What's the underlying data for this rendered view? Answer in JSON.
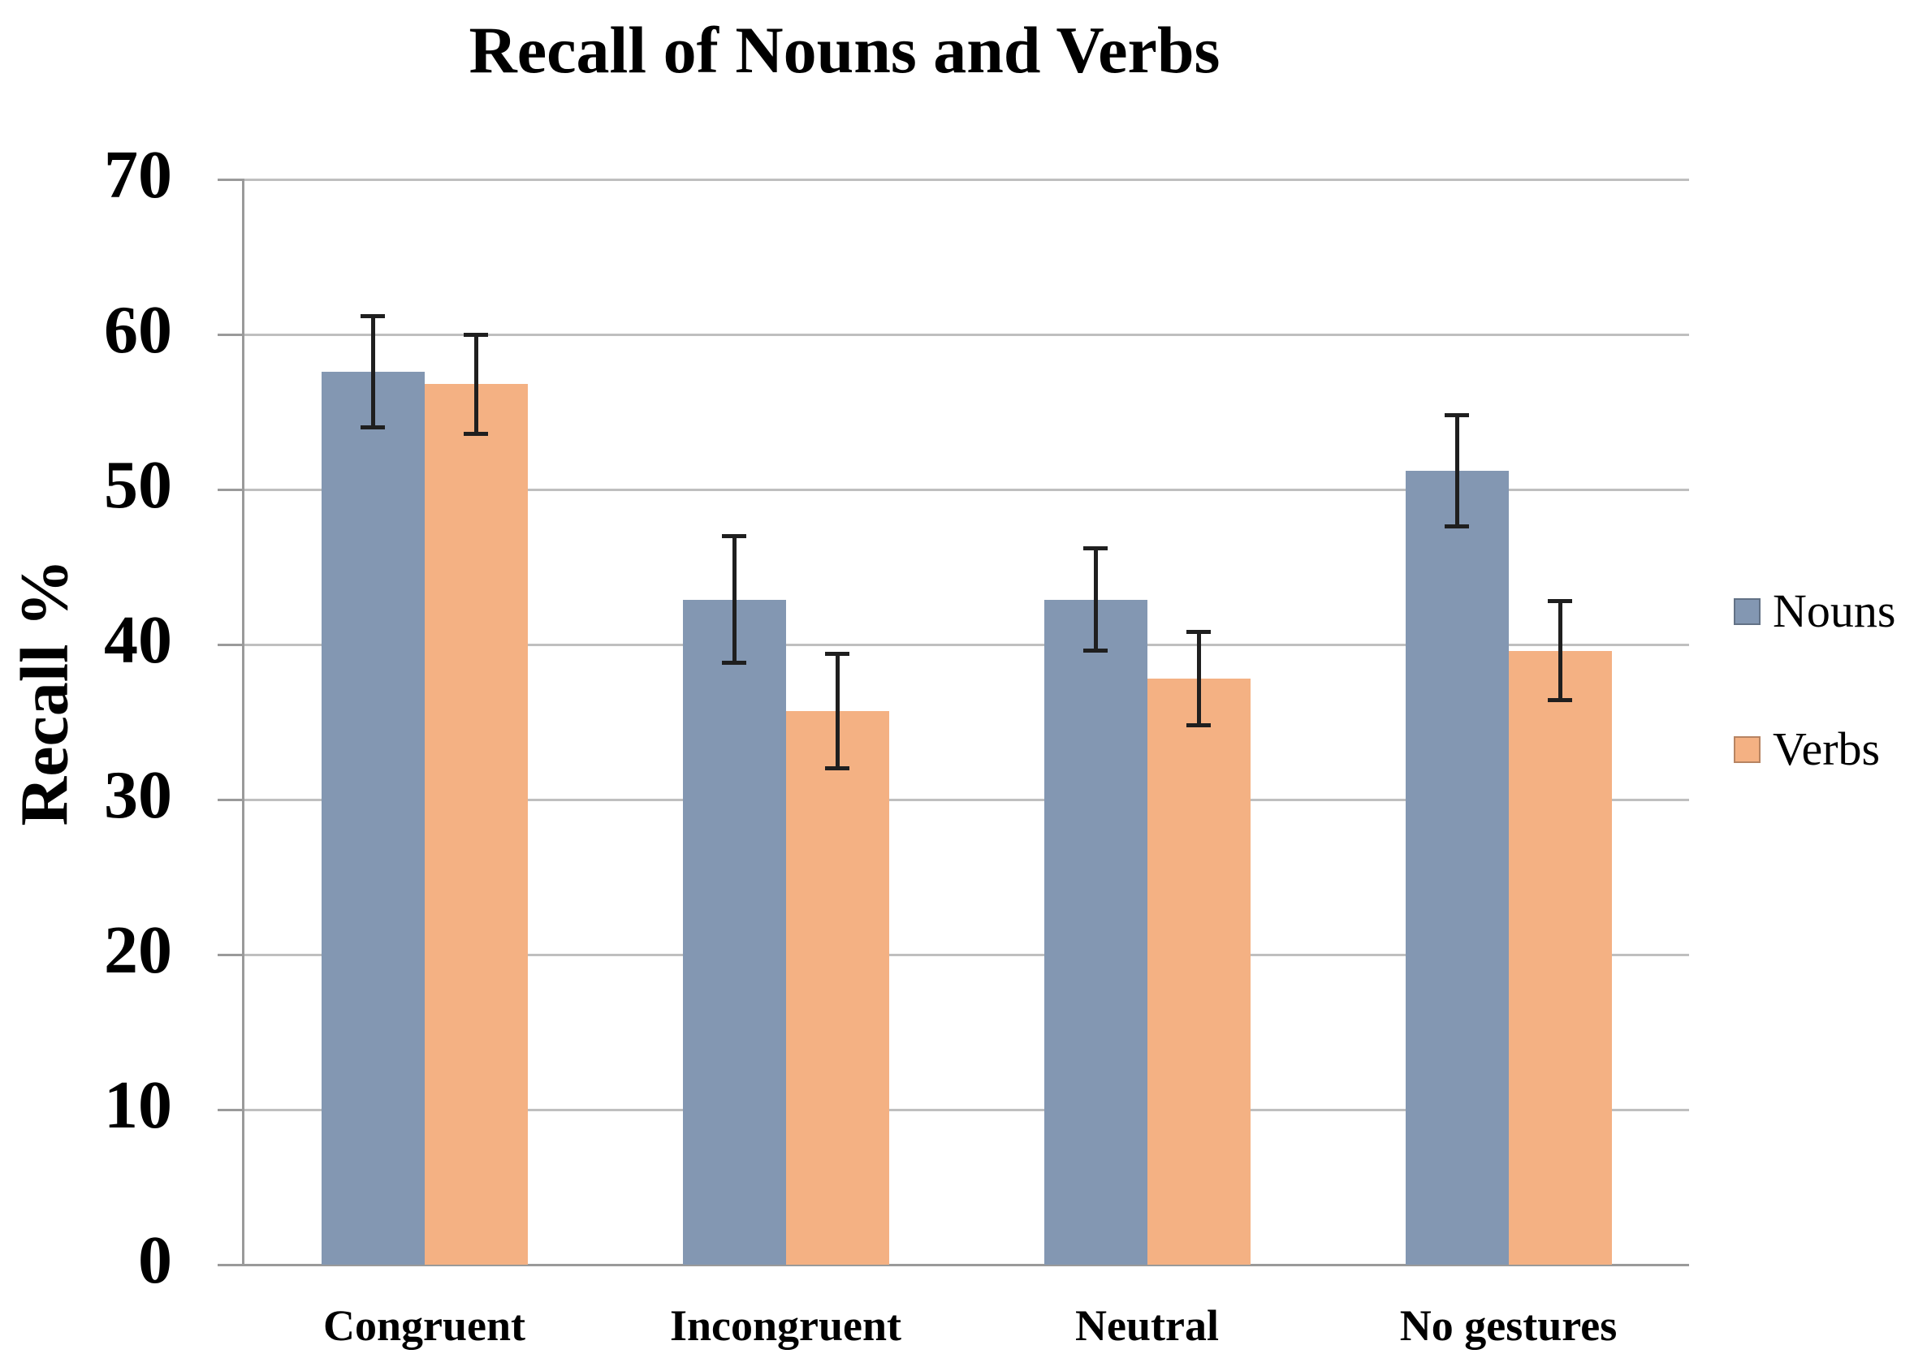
{
  "chart_data": {
    "type": "bar",
    "title": "Recall of Nouns and Verbs",
    "xlabel": "",
    "ylabel": "Recall %",
    "categories": [
      "Congruent",
      "Incongruent",
      "Neutral",
      "No gestures"
    ],
    "series": [
      {
        "name": "Nouns",
        "color": "#8397B2",
        "values": [
          57.6,
          42.9,
          42.9,
          51.2
        ],
        "errors": [
          3.6,
          4.1,
          3.3,
          3.6
        ]
      },
      {
        "name": "Verbs",
        "color": "#F4B183",
        "values": [
          56.8,
          35.7,
          37.8,
          39.6
        ],
        "errors": [
          3.2,
          3.7,
          3.0,
          3.2
        ]
      }
    ],
    "ylim": [
      0,
      70
    ],
    "yticks": [
      0,
      10,
      20,
      30,
      40,
      50,
      60,
      70
    ],
    "grid": "horizontal",
    "error_bars": true,
    "legend_position": "right"
  },
  "colors": {
    "background": "#FFFFFF",
    "gridline": "#BFBFBF",
    "axis": "#9A9A9A",
    "error_bar": "#1F1F1F",
    "text": "#000000"
  }
}
